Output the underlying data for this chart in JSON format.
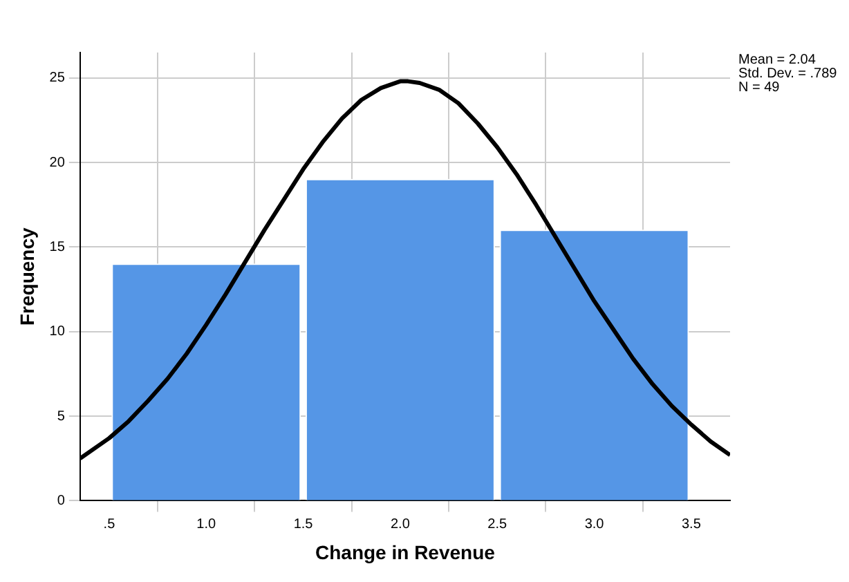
{
  "chart_data": {
    "type": "histogram",
    "xlabel": "Change in Revenue",
    "ylabel": "Frequency",
    "bins": [
      0.5,
      1.5,
      2.5,
      3.5
    ],
    "values": [
      14,
      19,
      16
    ],
    "color": "#5596e6",
    "series": [
      {
        "type": "line",
        "color": "#000000",
        "x": [
          0.35,
          0.5,
          0.6,
          0.7,
          0.8,
          0.9,
          1.0,
          1.1,
          1.2,
          1.3,
          1.4,
          1.5,
          1.6,
          1.7,
          1.8,
          1.9,
          2.0,
          2.04,
          2.1,
          2.2,
          2.3,
          2.4,
          2.5,
          2.6,
          2.7,
          2.8,
          2.9,
          3.0,
          3.1,
          3.2,
          3.3,
          3.4,
          3.5,
          3.6,
          3.7
        ],
        "values": [
          2.5,
          3.7,
          4.7,
          5.9,
          7.2,
          8.7,
          10.4,
          12.2,
          14.1,
          16.0,
          17.8,
          19.6,
          21.2,
          22.6,
          23.7,
          24.4,
          24.8,
          24.8,
          24.7,
          24.3,
          23.5,
          22.3,
          20.9,
          19.3,
          17.5,
          15.6,
          13.7,
          11.8,
          10.1,
          8.4,
          6.9,
          5.6,
          4.5,
          3.5,
          2.7
        ]
      }
    ],
    "xlim": [
      0.35,
      3.7
    ],
    "xticks": [
      {
        "value": 0.5,
        "label": ".5"
      },
      {
        "value": 1,
        "label": "1.0"
      },
      {
        "value": 1.5,
        "label": "1.5"
      },
      {
        "value": 2,
        "label": "2.0"
      },
      {
        "value": 2.5,
        "label": "2.5"
      },
      {
        "value": 3,
        "label": "3.0"
      },
      {
        "value": 3.5,
        "label": "3.5"
      }
    ],
    "ylim": [
      0,
      26.5
    ],
    "yticks": [
      0,
      5,
      10,
      15,
      20,
      25
    ],
    "grid": true,
    "marker": "none",
    "annotations": [
      "Mean = 2.04",
      "Std. Dev. = .789",
      "N = 49"
    ]
  }
}
